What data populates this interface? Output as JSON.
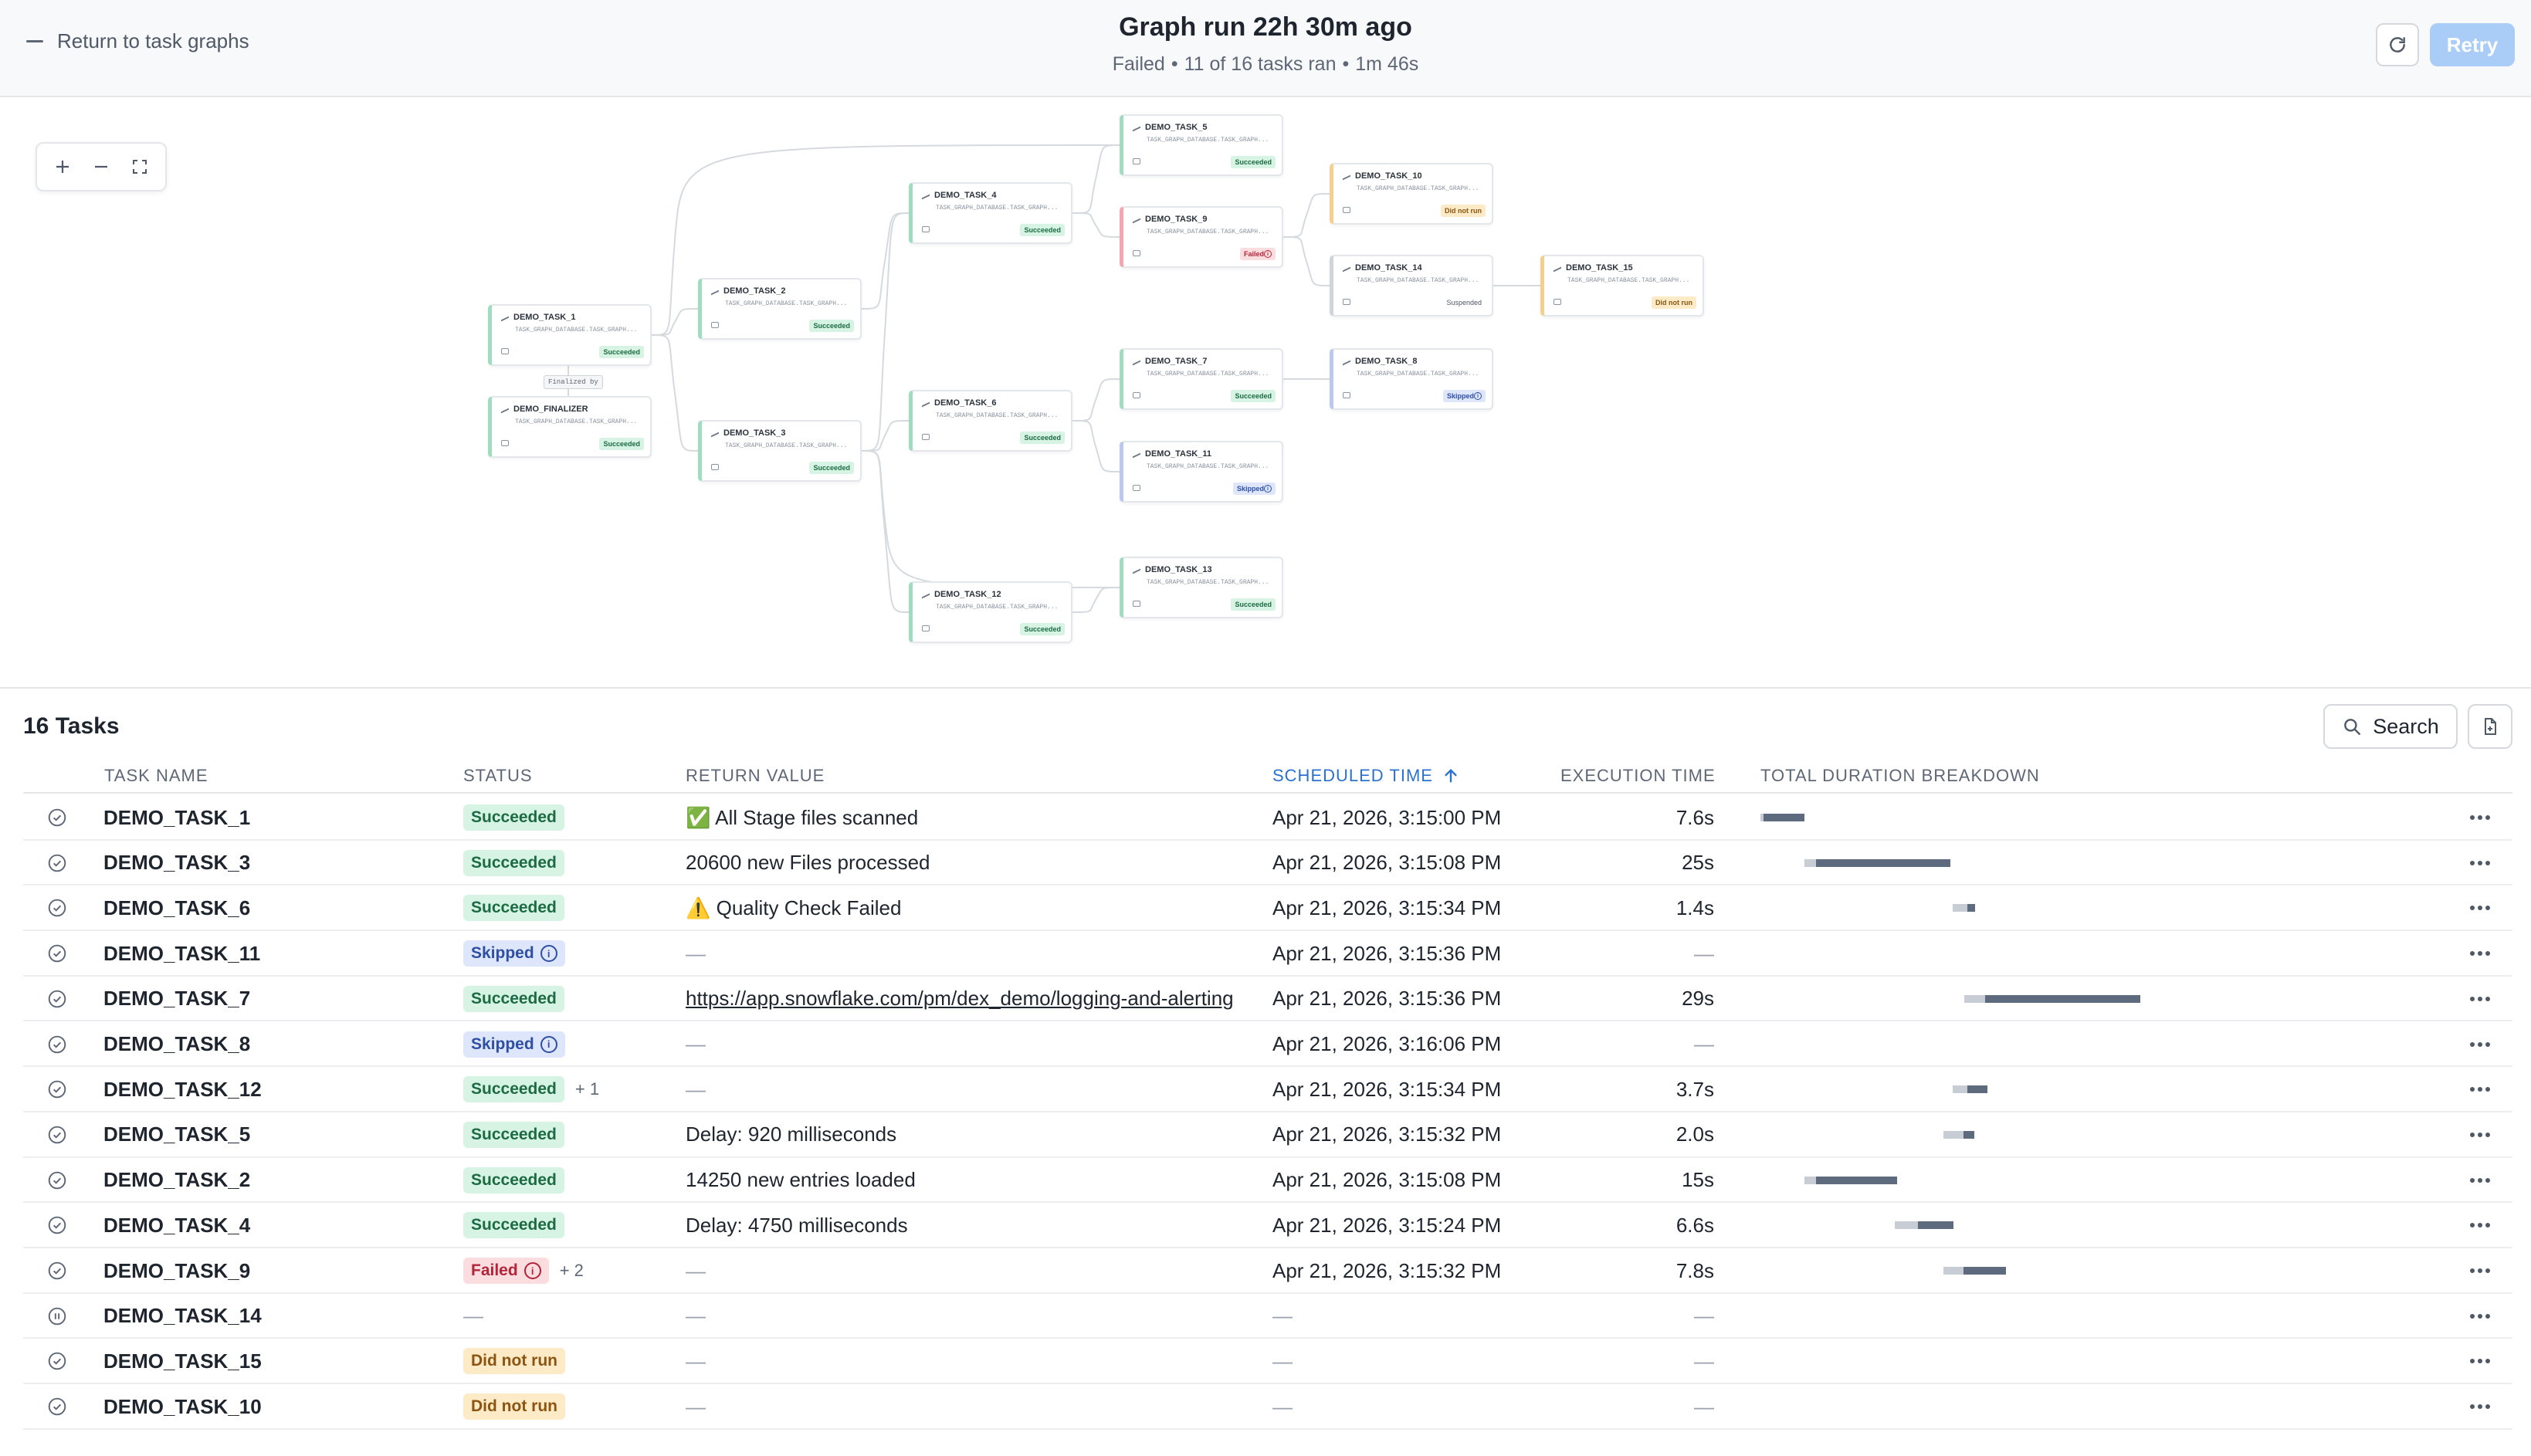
{
  "header": {
    "back_label": "Return to task graphs",
    "title": "Graph run 22h 30m ago",
    "subtitle": {
      "status": "Failed",
      "tasks_ran": "11 of 16 tasks ran",
      "duration": "1m 46s",
      "separator": "•"
    },
    "retry_label": "Retry",
    "refresh_icon": "refresh-icon"
  },
  "graph": {
    "zoom_in_icon": "plus-icon",
    "zoom_out_icon": "minus-icon",
    "fit_icon": "fullscreen-icon",
    "finalized_label": "Finalized by",
    "node_subtitle": "TASK_GRAPH_DATABASE.TASK_GRAPH...",
    "nodes": [
      {
        "name": "DEMO_TASK_1",
        "status": "Succeeded",
        "kind": "ok"
      },
      {
        "name": "DEMO_FINALIZER",
        "status": "Succeeded",
        "kind": "ok"
      },
      {
        "name": "DEMO_TASK_2",
        "status": "Succeeded",
        "kind": "ok"
      },
      {
        "name": "DEMO_TASK_3",
        "status": "Succeeded",
        "kind": "ok"
      },
      {
        "name": "DEMO_TASK_4",
        "status": "Succeeded",
        "kind": "ok"
      },
      {
        "name": "DEMO_TASK_6",
        "status": "Succeeded",
        "kind": "ok"
      },
      {
        "name": "DEMO_TASK_12",
        "status": "Succeeded",
        "kind": "ok"
      },
      {
        "name": "DEMO_TASK_5",
        "status": "Succeeded",
        "kind": "ok"
      },
      {
        "name": "DEMO_TASK_9",
        "status": "Failed",
        "kind": "fail"
      },
      {
        "name": "DEMO_TASK_7",
        "status": "Succeeded",
        "kind": "ok"
      },
      {
        "name": "DEMO_TASK_11",
        "status": "Skipped",
        "kind": "sk"
      },
      {
        "name": "DEMO_TASK_13",
        "status": "Succeeded",
        "kind": "ok"
      },
      {
        "name": "DEMO_TASK_10",
        "status": "Did not run",
        "kind": "nr"
      },
      {
        "name": "DEMO_TASK_14",
        "status": "Suspended",
        "kind": "su"
      },
      {
        "name": "DEMO_TASK_8",
        "status": "Skipped",
        "kind": "sk"
      },
      {
        "name": "DEMO_TASK_15",
        "status": "Did not run",
        "kind": "nr"
      }
    ]
  },
  "tasks": {
    "title": "16 Tasks",
    "search_label": "Search",
    "columns": {
      "name": "TASK NAME",
      "status": "STATUS",
      "return_value": "RETURN VALUE",
      "scheduled": "SCHEDULED TIME",
      "execution": "EXECUTION TIME",
      "duration": "TOTAL DURATION BREAKDOWN"
    },
    "rows": [
      {
        "name": "DEMO_TASK_1",
        "status": "Succeeded",
        "kind": "ok",
        "extra": "",
        "ret": "✅ All Stage files scanned",
        "link": false,
        "sched": "Apr 21, 2026, 3:15:00 PM",
        "exec": "7.6s",
        "wait": 0.0,
        "run": 7.6,
        "start": 0.0,
        "icon": "check"
      },
      {
        "name": "DEMO_TASK_3",
        "status": "Succeeded",
        "kind": "ok",
        "extra": "",
        "ret": "20600 new Files processed",
        "link": false,
        "sched": "Apr 21, 2026, 3:15:08 PM",
        "exec": "25s",
        "wait": 0.4,
        "run": 25,
        "start": 7.6,
        "icon": "check"
      },
      {
        "name": "DEMO_TASK_6",
        "status": "Succeeded",
        "kind": "ok",
        "extra": "",
        "ret": "⚠️ Quality Check Failed",
        "link": false,
        "sched": "Apr 21, 2026, 3:15:34 PM",
        "exec": "1.4s",
        "wait": 0.5,
        "run": 1.4,
        "start": 33.0,
        "icon": "check"
      },
      {
        "name": "DEMO_TASK_11",
        "status": "Skipped",
        "kind": "sk",
        "extra": "",
        "ret": "—",
        "link": false,
        "sched": "Apr 21, 2026, 3:15:36 PM",
        "exec": "—",
        "wait": 0,
        "run": 0,
        "start": 0,
        "icon": "check"
      },
      {
        "name": "DEMO_TASK_7",
        "status": "Succeeded",
        "kind": "ok",
        "extra": "",
        "ret": "https://app.snowflake.com/pm/dex_demo/logging-and-alerting",
        "link": true,
        "sched": "Apr 21, 2026, 3:15:36 PM",
        "exec": "29s",
        "wait": 0.7,
        "run": 29,
        "start": 35.0,
        "icon": "check"
      },
      {
        "name": "DEMO_TASK_8",
        "status": "Skipped",
        "kind": "sk",
        "extra": "",
        "ret": "—",
        "link": false,
        "sched": "Apr 21, 2026, 3:16:06 PM",
        "exec": "—",
        "wait": 0,
        "run": 0,
        "start": 0,
        "icon": "check"
      },
      {
        "name": "DEMO_TASK_12",
        "status": "Succeeded",
        "kind": "ok",
        "extra": "+ 1",
        "ret": "—",
        "link": false,
        "sched": "Apr 21, 2026, 3:15:34 PM",
        "exec": "3.7s",
        "wait": 0.5,
        "run": 3.7,
        "start": 33.0,
        "icon": "check"
      },
      {
        "name": "DEMO_TASK_5",
        "status": "Succeeded",
        "kind": "ok",
        "extra": "",
        "ret": "Delay: 920 milliseconds",
        "link": false,
        "sched": "Apr 21, 2026, 3:15:32 PM",
        "exec": "2.0s",
        "wait": 0.7,
        "run": 2.0,
        "start": 31.4,
        "icon": "check"
      },
      {
        "name": "DEMO_TASK_2",
        "status": "Succeeded",
        "kind": "ok",
        "extra": "",
        "ret": "14250 new entries loaded",
        "link": false,
        "sched": "Apr 21, 2026, 3:15:08 PM",
        "exec": "15s",
        "wait": 0.4,
        "run": 15,
        "start": 7.6,
        "icon": "check"
      },
      {
        "name": "DEMO_TASK_4",
        "status": "Succeeded",
        "kind": "ok",
        "extra": "",
        "ret": "Delay: 4750 milliseconds",
        "link": false,
        "sched": "Apr 21, 2026, 3:15:24 PM",
        "exec": "6.6s",
        "wait": 0.8,
        "run": 6.6,
        "start": 23.0,
        "icon": "check"
      },
      {
        "name": "DEMO_TASK_9",
        "status": "Failed",
        "kind": "fail",
        "extra": "+ 2",
        "ret": "—",
        "link": false,
        "sched": "Apr 21, 2026, 3:15:32 PM",
        "exec": "7.8s",
        "wait": 0.7,
        "run": 7.8,
        "start": 31.4,
        "icon": "check"
      },
      {
        "name": "DEMO_TASK_14",
        "status": "—",
        "kind": "none",
        "extra": "",
        "ret": "—",
        "link": false,
        "sched": "—",
        "exec": "—",
        "wait": 0,
        "run": 0,
        "start": 0,
        "icon": "pause"
      },
      {
        "name": "DEMO_TASK_15",
        "status": "Did not run",
        "kind": "nr",
        "extra": "",
        "ret": "—",
        "link": false,
        "sched": "—",
        "exec": "—",
        "wait": 0,
        "run": 0,
        "start": 0,
        "icon": "check"
      },
      {
        "name": "DEMO_TASK_10",
        "status": "Did not run",
        "kind": "nr",
        "extra": "",
        "ret": "—",
        "link": false,
        "sched": "—",
        "exec": "—",
        "wait": 0,
        "run": 0,
        "start": 0,
        "icon": "check"
      }
    ]
  }
}
